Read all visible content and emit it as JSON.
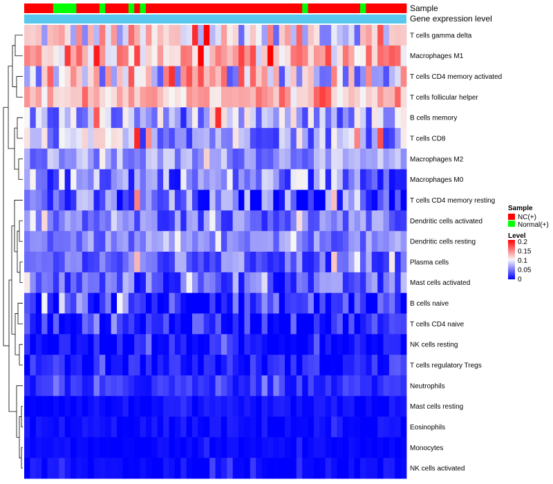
{
  "chart_data": {
    "type": "heatmap",
    "annotation_labels": [
      "Sample",
      "Gene expression level"
    ],
    "rows": [
      "T cells gamma delta",
      "Macrophages M1",
      "T cells CD4 memory activated",
      "T cells follicular helper",
      "B cells memory",
      "T cells CD8",
      "Macrophages M2",
      "Macrophages M0",
      "T cells CD4 memory resting",
      "Dendritic cells activated",
      "Dendritic cells resting",
      "Plasma cells",
      "Mast cells activated",
      "B cells naive",
      "T cells CD4 naive",
      "NK cells resting",
      "T cells regulatory  Tregs",
      "Neutrophils",
      "Mast cells resting",
      "Eosinophils",
      "Monocytes",
      "NK cells activated"
    ],
    "sample_groups": "RRRRRGGGGRRRRGRRRRGRGRRRRRRRRRRRRRRRRRRRRRRRRRRRGRRRRRRRRRGRRRRRRR",
    "value_range": [
      0,
      0.2
    ],
    "color_scale": {
      "low": "#0000ff",
      "mid": "#f7f7f7",
      "high": "#ff0000"
    },
    "sample_colors": {
      "NC": "#ff0000",
      "Normal": "#00ff00"
    },
    "expression_bar_color": "#5ac8ee",
    "legend": {
      "sample_title": "Sample",
      "sample_entries": [
        "NC(+)",
        "Normal(+)"
      ],
      "level_title": "Level",
      "level_ticks": [
        "0.2",
        "0.15",
        "0.1",
        "0.05",
        "0"
      ]
    }
  }
}
